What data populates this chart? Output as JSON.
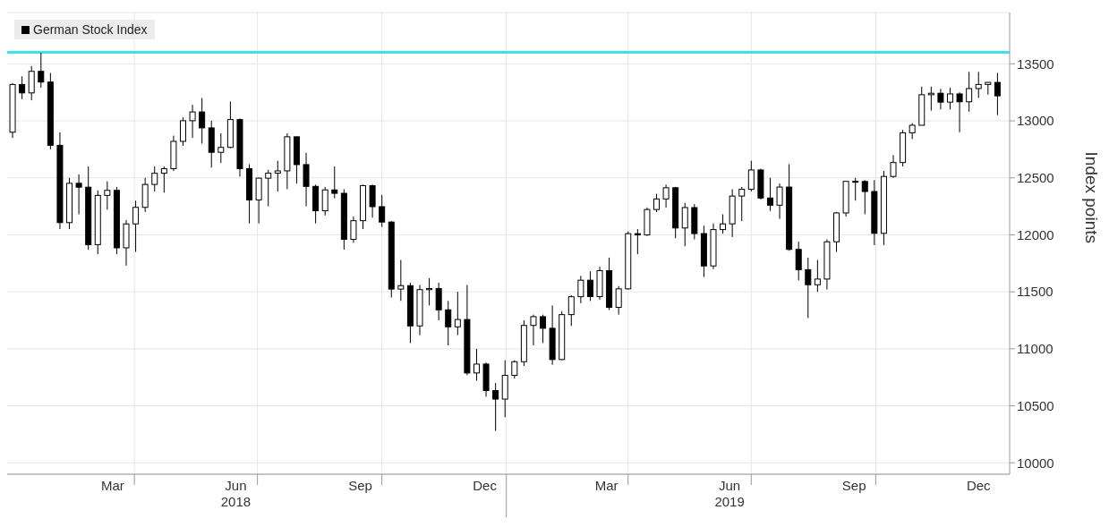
{
  "chart_data": {
    "type": "candlestick",
    "ylabel": "Index points",
    "legend": "top left",
    "grid": true,
    "x": [
      "2018-01-01",
      "2018-01-08",
      "2018-01-15",
      "2018-01-22",
      "2018-01-29",
      "2018-02-05",
      "2018-02-12",
      "2018-02-19",
      "2018-02-26",
      "2018-03-05",
      "2018-03-12",
      "2018-03-19",
      "2018-03-26",
      "2018-04-02",
      "2018-04-09",
      "2018-04-16",
      "2018-04-23",
      "2018-04-30",
      "2018-05-07",
      "2018-05-14",
      "2018-05-21",
      "2018-05-28",
      "2018-06-04",
      "2018-06-11",
      "2018-06-18",
      "2018-06-25",
      "2018-07-02",
      "2018-07-09",
      "2018-07-16",
      "2018-07-23",
      "2018-07-30",
      "2018-08-06",
      "2018-08-13",
      "2018-08-20",
      "2018-08-27",
      "2018-09-03",
      "2018-09-10",
      "2018-09-17",
      "2018-09-24",
      "2018-10-01",
      "2018-10-08",
      "2018-10-15",
      "2018-10-22",
      "2018-10-29",
      "2018-11-05",
      "2018-11-12",
      "2018-11-19",
      "2018-11-26",
      "2018-12-03",
      "2018-12-10",
      "2018-12-17",
      "2018-12-24",
      "2018-12-31",
      "2019-01-07",
      "2019-01-14",
      "2019-01-21",
      "2019-01-28",
      "2019-02-04",
      "2019-02-11",
      "2019-02-18",
      "2019-02-25",
      "2019-03-04",
      "2019-03-11",
      "2019-03-18",
      "2019-03-25",
      "2019-04-01",
      "2019-04-08",
      "2019-04-15",
      "2019-04-22",
      "2019-04-29",
      "2019-05-06",
      "2019-05-13",
      "2019-05-20",
      "2019-05-27",
      "2019-06-03",
      "2019-06-10",
      "2019-06-17",
      "2019-06-24",
      "2019-07-01",
      "2019-07-08",
      "2019-07-15",
      "2019-07-22",
      "2019-07-29",
      "2019-08-05",
      "2019-08-12",
      "2019-08-19",
      "2019-08-26",
      "2019-09-02",
      "2019-09-09",
      "2019-09-16",
      "2019-09-23",
      "2019-09-30",
      "2019-10-07",
      "2019-10-14",
      "2019-10-21",
      "2019-10-28",
      "2019-11-04",
      "2019-11-11",
      "2019-11-18",
      "2019-11-25",
      "2019-12-02",
      "2019-12-09",
      "2019-12-16",
      "2019-12-23",
      "2019-12-30"
    ],
    "series": [
      {
        "name": "German Stock Index",
        "color": "#000000",
        "ohlc": [
          [
            12900,
            13330,
            12850,
            13319
          ],
          [
            13319,
            13390,
            13190,
            13245
          ],
          [
            13245,
            13480,
            13180,
            13434
          ],
          [
            13434,
            13597,
            13290,
            13340
          ],
          [
            13340,
            13420,
            12750,
            12785
          ],
          [
            12785,
            12900,
            12050,
            12107
          ],
          [
            12107,
            12500,
            12050,
            12452
          ],
          [
            12452,
            12530,
            12180,
            12418
          ],
          [
            12418,
            12600,
            11870,
            11914
          ],
          [
            11914,
            12390,
            11830,
            12346
          ],
          [
            12346,
            12470,
            12220,
            12390
          ],
          [
            12390,
            12420,
            11830,
            11886
          ],
          [
            11886,
            12130,
            11730,
            12096
          ],
          [
            12096,
            12300,
            11850,
            12241
          ],
          [
            12241,
            12500,
            12200,
            12442
          ],
          [
            12442,
            12600,
            12380,
            12540
          ],
          [
            12540,
            12600,
            12370,
            12580
          ],
          [
            12580,
            12870,
            12560,
            12820
          ],
          [
            12820,
            13030,
            12780,
            13001
          ],
          [
            13001,
            13140,
            12850,
            13078
          ],
          [
            13078,
            13200,
            12800,
            12938
          ],
          [
            12938,
            13000,
            12590,
            12724
          ],
          [
            12724,
            12890,
            12630,
            12767
          ],
          [
            12767,
            13170,
            12760,
            13011
          ],
          [
            13011,
            13020,
            12510,
            12580
          ],
          [
            12580,
            12620,
            12100,
            12306
          ],
          [
            12306,
            12500,
            12100,
            12497
          ],
          [
            12497,
            12570,
            12250,
            12541
          ],
          [
            12541,
            12650,
            12380,
            12561
          ],
          [
            12561,
            12890,
            12400,
            12860
          ],
          [
            12860,
            12860,
            12450,
            12616
          ],
          [
            12616,
            12720,
            12250,
            12425
          ],
          [
            12425,
            12440,
            12100,
            12211
          ],
          [
            12211,
            12420,
            12170,
            12394
          ],
          [
            12394,
            12600,
            12320,
            12364
          ],
          [
            12364,
            12400,
            11870,
            11960
          ],
          [
            11960,
            12160,
            11930,
            12124
          ],
          [
            12124,
            12440,
            12050,
            12431
          ],
          [
            12431,
            12440,
            12150,
            12247
          ],
          [
            12247,
            12350,
            12070,
            12112
          ],
          [
            12112,
            12120,
            11450,
            11524
          ],
          [
            11524,
            11780,
            11420,
            11554
          ],
          [
            11554,
            11580,
            11050,
            11201
          ],
          [
            11201,
            11560,
            11120,
            11519
          ],
          [
            11519,
            11620,
            11380,
            11529
          ],
          [
            11529,
            11580,
            11250,
            11342
          ],
          [
            11342,
            11420,
            11030,
            11193
          ],
          [
            11193,
            11500,
            11120,
            11257
          ],
          [
            11257,
            11560,
            10770,
            10788
          ],
          [
            10788,
            11000,
            10720,
            10866
          ],
          [
            10866,
            10880,
            10580,
            10634
          ],
          [
            10634,
            10700,
            10280,
            10559
          ],
          [
            10559,
            10900,
            10400,
            10767
          ],
          [
            10767,
            10900,
            10740,
            10887
          ],
          [
            10887,
            11250,
            10850,
            11205
          ],
          [
            11205,
            11300,
            11030,
            11282
          ],
          [
            11282,
            11300,
            11050,
            11180
          ],
          [
            11180,
            11380,
            10860,
            10906
          ],
          [
            10906,
            11330,
            10900,
            11300
          ],
          [
            11300,
            11470,
            11200,
            11457
          ],
          [
            11457,
            11640,
            11400,
            11602
          ],
          [
            11602,
            11680,
            11420,
            11458
          ],
          [
            11458,
            11720,
            11430,
            11686
          ],
          [
            11686,
            11800,
            11340,
            11364
          ],
          [
            11364,
            11550,
            11300,
            11526
          ],
          [
            11526,
            12030,
            11520,
            12010
          ],
          [
            12010,
            12050,
            11830,
            11999
          ],
          [
            11999,
            12240,
            11990,
            12222
          ],
          [
            12222,
            12360,
            12200,
            12315
          ],
          [
            12315,
            12440,
            12240,
            12413
          ],
          [
            12413,
            12420,
            11970,
            12060
          ],
          [
            12060,
            12280,
            11900,
            12239
          ],
          [
            12239,
            12270,
            11960,
            12011
          ],
          [
            12011,
            12080,
            11630,
            11727
          ],
          [
            11727,
            12100,
            11700,
            12046
          ],
          [
            12046,
            12180,
            12010,
            12096
          ],
          [
            12096,
            12400,
            11980,
            12340
          ],
          [
            12340,
            12420,
            12120,
            12399
          ],
          [
            12399,
            12650,
            12380,
            12569
          ],
          [
            12569,
            12580,
            12310,
            12323
          ],
          [
            12323,
            12500,
            12210,
            12260
          ],
          [
            12260,
            12450,
            12140,
            12419
          ],
          [
            12419,
            12620,
            11860,
            11872
          ],
          [
            11872,
            11940,
            11600,
            11694
          ],
          [
            11694,
            11800,
            11270,
            11562
          ],
          [
            11562,
            11780,
            11500,
            11612
          ],
          [
            11612,
            11960,
            11520,
            11939
          ],
          [
            11939,
            12200,
            11850,
            12192
          ],
          [
            12192,
            12470,
            12160,
            12469
          ],
          [
            12469,
            12500,
            12300,
            12468
          ],
          [
            12468,
            12480,
            12180,
            12380
          ],
          [
            12380,
            12480,
            11910,
            12013
          ],
          [
            12013,
            12560,
            11910,
            12512
          ],
          [
            12512,
            12700,
            12500,
            12634
          ],
          [
            12634,
            12920,
            12600,
            12895
          ],
          [
            12895,
            12980,
            12840,
            12961
          ],
          [
            12961,
            13300,
            12960,
            13229
          ],
          [
            13229,
            13300,
            13090,
            13242
          ],
          [
            13242,
            13280,
            13100,
            13164
          ],
          [
            13164,
            13290,
            13100,
            13236
          ],
          [
            13236,
            13250,
            12900,
            13167
          ],
          [
            13167,
            13430,
            13080,
            13283
          ],
          [
            13283,
            13430,
            13200,
            13319
          ],
          [
            13319,
            13340,
            13230,
            13337
          ],
          [
            13337,
            13420,
            13050,
            13219
          ]
        ]
      }
    ],
    "xlim": [
      "2017-12-28",
      "2020-01-08"
    ],
    "xticks": [
      {
        "value": "2018-03-16",
        "label": "Mar"
      },
      {
        "value": "2018-04-01",
        "label": null
      },
      {
        "value": "2018-06-15",
        "label": "Jun\n2018"
      },
      {
        "value": "2018-07-01",
        "label": null
      },
      {
        "value": "2018-09-15",
        "label": "Sep"
      },
      {
        "value": "2018-10-01",
        "label": null
      },
      {
        "value": "2018-12-16",
        "label": "Dec"
      },
      {
        "value": "2019-01-01",
        "label": null
      },
      {
        "value": "2019-03-16",
        "label": "Mar"
      },
      {
        "value": "2019-04-01",
        "label": null
      },
      {
        "value": "2019-06-15",
        "label": "Jun\n2019"
      },
      {
        "value": "2019-07-01",
        "label": null
      },
      {
        "value": "2019-09-15",
        "label": "Sep"
      },
      {
        "value": "2019-10-01",
        "label": null
      },
      {
        "value": "2019-12-16",
        "label": "Dec"
      }
    ],
    "ylim": [
      9900,
      13950
    ],
    "yticks": [
      10000,
      10500,
      11000,
      11500,
      12000,
      12500,
      13000,
      13500
    ],
    "ref_lines": [
      {
        "axis": "y",
        "value": 13600,
        "color": "#3ee0ee"
      }
    ]
  }
}
